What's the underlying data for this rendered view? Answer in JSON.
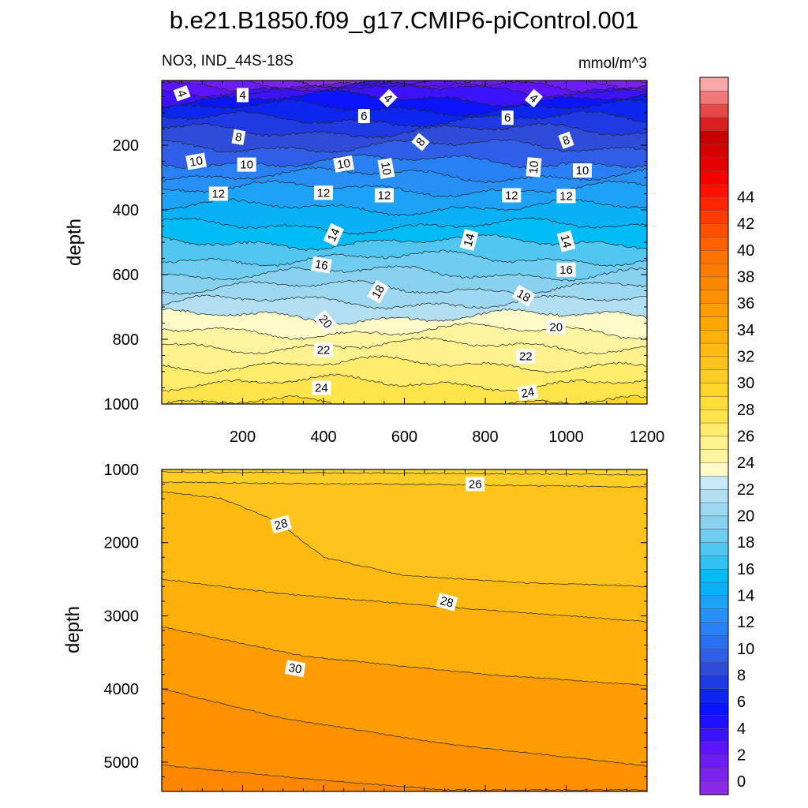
{
  "figure": {
    "title": "b.e21.B1850.f09_g17.CMIP6-piControl.001",
    "variable": "NO3, IND_44S-18S",
    "units": "mmol/m^3"
  },
  "chart_data": [
    {
      "type": "contour",
      "panel": "upper",
      "ylabel": "depth",
      "xlabel": "",
      "xlim": [
        0,
        1200
      ],
      "ylim": [
        1000,
        0
      ],
      "x_ticks": [
        "200",
        "400",
        "600",
        "800",
        "1000",
        "1200"
      ],
      "y_ticks": [
        "200",
        "400",
        "600",
        "800",
        "1000"
      ],
      "contour_interval": 1,
      "contour_labels": [
        {
          "text": "4",
          "x": 50,
          "y": 40,
          "angle": 70
        },
        {
          "text": "4",
          "x": 200,
          "y": 45,
          "angle": 0
        },
        {
          "text": "4",
          "x": 560,
          "y": 55,
          "angle": 45
        },
        {
          "text": "4",
          "x": 920,
          "y": 55,
          "angle": 40
        },
        {
          "text": "6",
          "x": 500,
          "y": 110,
          "angle": 0
        },
        {
          "text": "6",
          "x": 855,
          "y": 115,
          "angle": 0
        },
        {
          "text": "8",
          "x": 190,
          "y": 175,
          "angle": 10
        },
        {
          "text": "8",
          "x": 640,
          "y": 190,
          "angle": -50
        },
        {
          "text": "8",
          "x": 1000,
          "y": 185,
          "angle": -20
        },
        {
          "text": "10",
          "x": 85,
          "y": 250,
          "angle": -10
        },
        {
          "text": "10",
          "x": 210,
          "y": 260,
          "angle": 0
        },
        {
          "text": "10",
          "x": 450,
          "y": 258,
          "angle": -10
        },
        {
          "text": "10",
          "x": 555,
          "y": 272,
          "angle": 80
        },
        {
          "text": "10",
          "x": 920,
          "y": 268,
          "angle": -85
        },
        {
          "text": "10",
          "x": 1040,
          "y": 278,
          "angle": 0
        },
        {
          "text": "12",
          "x": 140,
          "y": 350,
          "angle": 0
        },
        {
          "text": "12",
          "x": 400,
          "y": 347,
          "angle": 0
        },
        {
          "text": "12",
          "x": 550,
          "y": 355,
          "angle": 0
        },
        {
          "text": "12",
          "x": 865,
          "y": 355,
          "angle": 0
        },
        {
          "text": "12",
          "x": 1000,
          "y": 357,
          "angle": 0
        },
        {
          "text": "14",
          "x": 425,
          "y": 477,
          "angle": -65
        },
        {
          "text": "14",
          "x": 760,
          "y": 493,
          "angle": -75
        },
        {
          "text": "14",
          "x": 1000,
          "y": 497,
          "angle": 75
        },
        {
          "text": "16",
          "x": 395,
          "y": 570,
          "angle": 10
        },
        {
          "text": "16",
          "x": 1000,
          "y": 585,
          "angle": 0
        },
        {
          "text": "18",
          "x": 535,
          "y": 653,
          "angle": -60
        },
        {
          "text": "18",
          "x": 895,
          "y": 665,
          "angle": 30
        },
        {
          "text": "20",
          "x": 405,
          "y": 745,
          "angle": 50
        },
        {
          "text": "20",
          "x": 975,
          "y": 762,
          "angle": 0
        },
        {
          "text": "22",
          "x": 400,
          "y": 833,
          "angle": 0
        },
        {
          "text": "22",
          "x": 900,
          "y": 852,
          "angle": 0
        },
        {
          "text": "24",
          "x": 395,
          "y": 950,
          "angle": 0
        },
        {
          "text": "24",
          "x": 905,
          "y": 965,
          "angle": -10
        }
      ]
    },
    {
      "type": "contour",
      "panel": "lower",
      "ylabel": "depth",
      "xlabel": "",
      "xlim": [
        0,
        1200
      ],
      "ylim": [
        5400,
        1000
      ],
      "y_ticks": [
        "1000",
        "2000",
        "3000",
        "4000",
        "5000"
      ],
      "contour_interval": 1,
      "contour_labels": [
        {
          "text": "26",
          "x": 775,
          "y": 1200,
          "angle": 0
        },
        {
          "text": "28",
          "x": 295,
          "y": 1750,
          "angle": -15
        },
        {
          "text": "28",
          "x": 705,
          "y": 2810,
          "angle": 15
        },
        {
          "text": "30",
          "x": 330,
          "y": 3720,
          "angle": 10
        }
      ]
    }
  ],
  "colorbar": {
    "labels": [
      "0",
      "2",
      "4",
      "6",
      "8",
      "10",
      "12",
      "14",
      "16",
      "18",
      "20",
      "22",
      "24",
      "26",
      "28",
      "30",
      "32",
      "34",
      "36",
      "38",
      "40",
      "42",
      "44"
    ],
    "colors": [
      "#8b2be8",
      "#7c22ee",
      "#6e1cf4",
      "#5e14fa",
      "#3d12ff",
      "#1f10ff",
      "#0b14ff",
      "#0c26f0",
      "#1f3ae4",
      "#2f4cd8",
      "#2f5ee8",
      "#2c6ff0",
      "#2980f4",
      "#2690f6",
      "#1ea2f8",
      "#0ab0f5",
      "#00bcf5",
      "#2ec3f2",
      "#50c6f0",
      "#6ecdf0",
      "#88d2ef",
      "#9dd8f0",
      "#b2e0f2",
      "#c9e9f6",
      "#fffbc8",
      "#fff4a0",
      "#fff18d",
      "#ffeb6c",
      "#ffe44c",
      "#ffdd3a",
      "#ffd52c",
      "#ffcd24",
      "#ffc31c",
      "#ffba12",
      "#ffb008",
      "#ffa600",
      "#ff9c00",
      "#ff9100",
      "#ff8700",
      "#ff7c00",
      "#ff7100",
      "#ff6100",
      "#ff5000",
      "#ff3c00",
      "#ff2600",
      "#ff1000",
      "#f40000",
      "#e40000",
      "#d40000",
      "#c60000",
      "#d82020",
      "#e64848",
      "#f07878",
      "#f8a8a8"
    ]
  }
}
